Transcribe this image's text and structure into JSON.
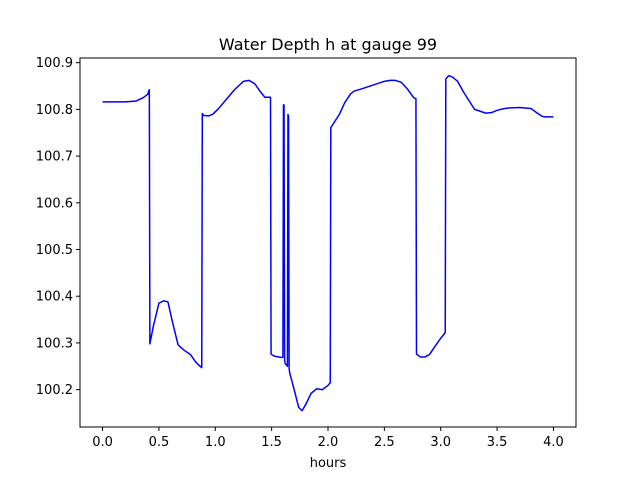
{
  "chart_data": {
    "type": "line",
    "title": "Water Depth h at gauge 99",
    "xlabel": "hours",
    "ylabel": "",
    "xlim": [
      -0.2,
      4.2
    ],
    "ylim": [
      100.12,
      100.91
    ],
    "xticks": [
      0.0,
      0.5,
      1.0,
      1.5,
      2.0,
      2.5,
      3.0,
      3.5,
      4.0
    ],
    "xtick_labels": [
      "0.0",
      "0.5",
      "1.0",
      "1.5",
      "2.0",
      "2.5",
      "3.0",
      "3.5",
      "4.0"
    ],
    "yticks": [
      100.2,
      100.3,
      100.4,
      100.5,
      100.6,
      100.7,
      100.8,
      100.9
    ],
    "ytick_labels": [
      "100.2",
      "100.3",
      "100.4",
      "100.5",
      "100.6",
      "100.7",
      "100.8",
      "100.9"
    ],
    "grid": false,
    "series": [
      {
        "color": "#0000ff",
        "x": [
          0.0,
          0.1,
          0.2,
          0.3,
          0.36,
          0.4,
          0.415,
          0.42,
          0.45,
          0.5,
          0.54,
          0.58,
          0.62,
          0.67,
          0.72,
          0.78,
          0.83,
          0.88,
          0.885,
          0.9,
          0.94,
          0.98,
          1.03,
          1.1,
          1.17,
          1.25,
          1.3,
          1.35,
          1.4,
          1.44,
          1.49,
          1.495,
          1.52,
          1.58,
          1.6,
          1.605,
          1.61,
          1.615,
          1.62,
          1.63,
          1.64,
          1.645,
          1.65,
          1.655,
          1.66,
          1.7,
          1.74,
          1.77,
          1.8,
          1.85,
          1.9,
          1.95,
          2.0,
          2.02,
          2.025,
          2.1,
          2.15,
          2.2,
          2.23,
          2.3,
          2.4,
          2.5,
          2.55,
          2.6,
          2.65,
          2.7,
          2.76,
          2.78,
          2.785,
          2.82,
          2.86,
          2.9,
          2.95,
          3.0,
          3.04,
          3.045,
          3.07,
          3.1,
          3.15,
          3.2,
          3.3,
          3.4,
          3.45,
          3.5,
          3.55,
          3.6,
          3.7,
          3.8,
          3.85,
          3.9,
          3.93,
          3.95,
          4.0
        ],
        "y": [
          100.816,
          100.816,
          100.816,
          100.818,
          100.825,
          100.832,
          100.842,
          100.298,
          100.335,
          100.385,
          100.39,
          100.388,
          100.345,
          100.296,
          100.285,
          100.275,
          100.258,
          100.247,
          100.791,
          100.787,
          100.786,
          100.79,
          100.802,
          100.822,
          100.842,
          100.86,
          100.862,
          100.855,
          100.838,
          100.826,
          100.826,
          100.276,
          100.272,
          100.269,
          100.269,
          100.81,
          100.809,
          100.263,
          100.256,
          100.253,
          100.25,
          100.789,
          100.785,
          100.246,
          100.236,
          100.2,
          100.162,
          100.155,
          100.167,
          100.192,
          100.202,
          100.2,
          100.209,
          100.215,
          100.761,
          100.789,
          100.815,
          100.833,
          100.839,
          100.844,
          100.852,
          100.86,
          100.862,
          100.862,
          100.858,
          100.845,
          100.825,
          100.823,
          100.276,
          100.27,
          100.27,
          100.275,
          100.293,
          100.31,
          100.322,
          100.865,
          100.872,
          100.87,
          100.86,
          100.838,
          100.8,
          100.792,
          100.793,
          100.798,
          100.801,
          100.803,
          100.804,
          100.802,
          100.793,
          100.785,
          100.784,
          100.784,
          100.784
        ]
      }
    ]
  }
}
